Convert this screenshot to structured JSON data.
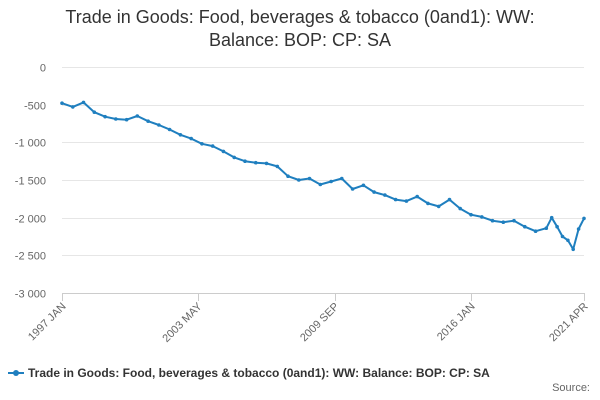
{
  "colors": {
    "series": "#1f7fbf",
    "grid": "#e6e6e6",
    "axis_text": "#666666",
    "title": "#333333"
  },
  "legend": {
    "label": "Trade in Goods: Food, beverages & tobacco (0and1): WW: Balance: BOP: CP: SA"
  },
  "source_label": "Source:",
  "chart_data": {
    "type": "line",
    "title_lines": [
      "Trade in Goods: Food, beverages & tobacco (0and1): WW:",
      "Balance: BOP: CP: SA"
    ],
    "xlabel": "",
    "ylabel": "",
    "ylim": [
      -3000,
      0
    ],
    "yticks": [
      0,
      -500,
      -1000,
      -1500,
      -2000,
      -2500,
      -3000
    ],
    "ytick_labels": [
      "0",
      "-500",
      "-1 000",
      "-1 500",
      "-2 000",
      "-2 500",
      "-3 000"
    ],
    "xlim": [
      "1997 JAN",
      "2021 APR"
    ],
    "xticks": [
      "1997 JAN",
      "2003 MAY",
      "2009 SEP",
      "2016 JAN",
      "2021 APR"
    ],
    "grid": "horizontal",
    "legend_position": "bottom",
    "series": [
      {
        "name": "Trade in Goods: Food, beverages & tobacco (0and1): WW: Balance: BOP: CP: SA",
        "x": [
          "1997 JAN",
          "1997 JUL",
          "1998 JAN",
          "1998 JUL",
          "1999 JAN",
          "1999 JUL",
          "2000 JAN",
          "2000 JUL",
          "2001 JAN",
          "2001 JUL",
          "2002 JAN",
          "2002 JUL",
          "2003 JAN",
          "2003 JUL",
          "2004 JAN",
          "2004 JUL",
          "2005 JAN",
          "2005 JUL",
          "2006 JAN",
          "2006 JUL",
          "2007 JAN",
          "2007 JUL",
          "2008 JAN",
          "2008 JUL",
          "2009 JAN",
          "2009 JUL",
          "2010 JAN",
          "2010 JUL",
          "2011 JAN",
          "2011 JUL",
          "2012 JAN",
          "2012 JUL",
          "2013 JAN",
          "2013 JUL",
          "2014 JAN",
          "2014 JUL",
          "2015 JAN",
          "2015 JUL",
          "2016 JAN",
          "2016 JUL",
          "2017 JAN",
          "2017 JUL",
          "2018 JAN",
          "2018 JUL",
          "2019 JAN",
          "2019 JUL",
          "2019 OCT",
          "2020 JAN",
          "2020 APR",
          "2020 JUL",
          "2020 OCT",
          "2021 JAN",
          "2021 APR"
        ],
        "values": [
          -480,
          -530,
          -470,
          -600,
          -660,
          -690,
          -700,
          -650,
          -720,
          -770,
          -830,
          -900,
          -950,
          -1020,
          -1050,
          -1120,
          -1200,
          -1250,
          -1270,
          -1280,
          -1320,
          -1450,
          -1500,
          -1480,
          -1560,
          -1520,
          -1480,
          -1620,
          -1570,
          -1660,
          -1700,
          -1760,
          -1780,
          -1720,
          -1810,
          -1850,
          -1760,
          -1880,
          -1960,
          -1990,
          -2040,
          -2060,
          -2040,
          -2120,
          -2180,
          -2140,
          -2000,
          -2120,
          -2250,
          -2300,
          -2420,
          -2150,
          -2010
        ]
      }
    ]
  }
}
